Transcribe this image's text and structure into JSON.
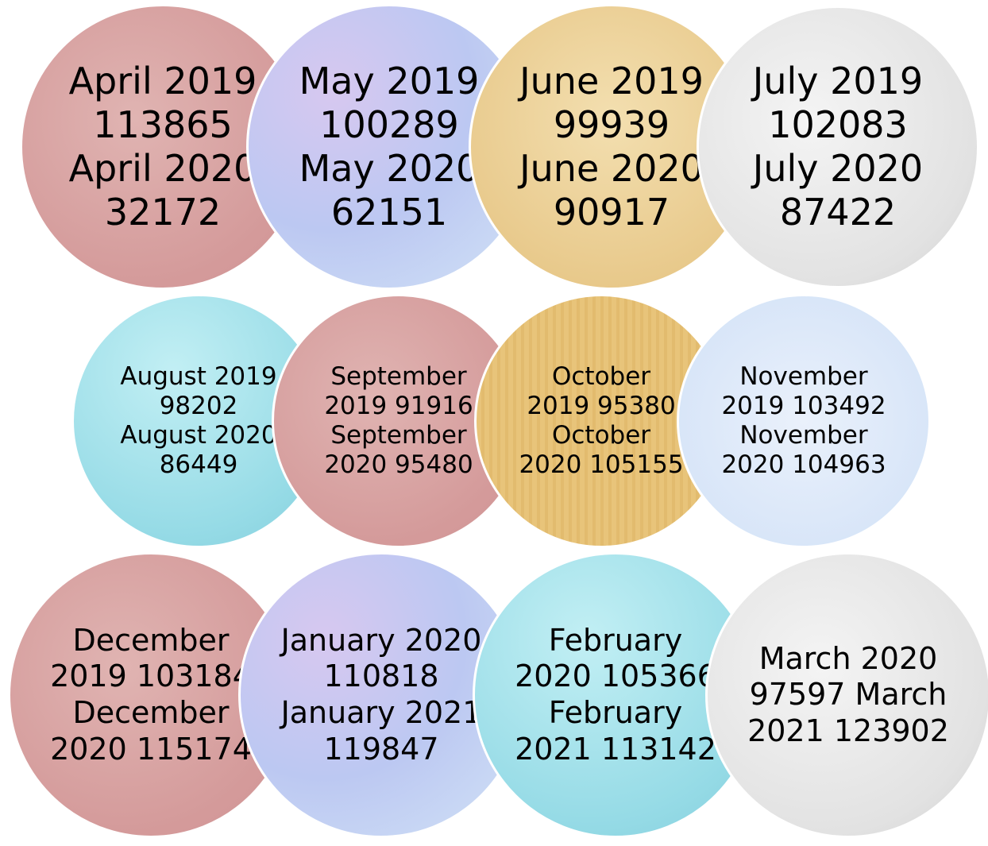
{
  "circles": [
    {
      "lines": [
        "April 2019",
        "113865",
        "April 2020",
        "32172"
      ]
    },
    {
      "lines": [
        "May 2019",
        "100289",
        "May 2020",
        "62151"
      ]
    },
    {
      "lines": [
        "June 2019",
        "99939",
        "June 2020",
        "90917"
      ]
    },
    {
      "lines": [
        "July 2019",
        "102083",
        "July 2020",
        "87422"
      ]
    },
    {
      "lines": [
        "August 2019",
        "98202",
        "August 2020",
        "86449"
      ]
    },
    {
      "lines": [
        "September",
        "2019 91916",
        "September",
        "2020 95480"
      ]
    },
    {
      "lines": [
        "October",
        "2019 95380",
        "October",
        "2020 105155"
      ]
    },
    {
      "lines": [
        "November",
        "2019 103492",
        "November",
        "2020 104963"
      ]
    },
    {
      "lines": [
        "December",
        "2019 103184",
        "December",
        "2020 115174"
      ]
    },
    {
      "lines": [
        "January 2020",
        "110818",
        "January 2021",
        "119847"
      ]
    },
    {
      "lines": [
        "February",
        "2020 105366",
        "February",
        "2021 113142"
      ]
    },
    {
      "lines": [
        "March 2020",
        "97597 March",
        "2021 123902"
      ]
    }
  ]
}
